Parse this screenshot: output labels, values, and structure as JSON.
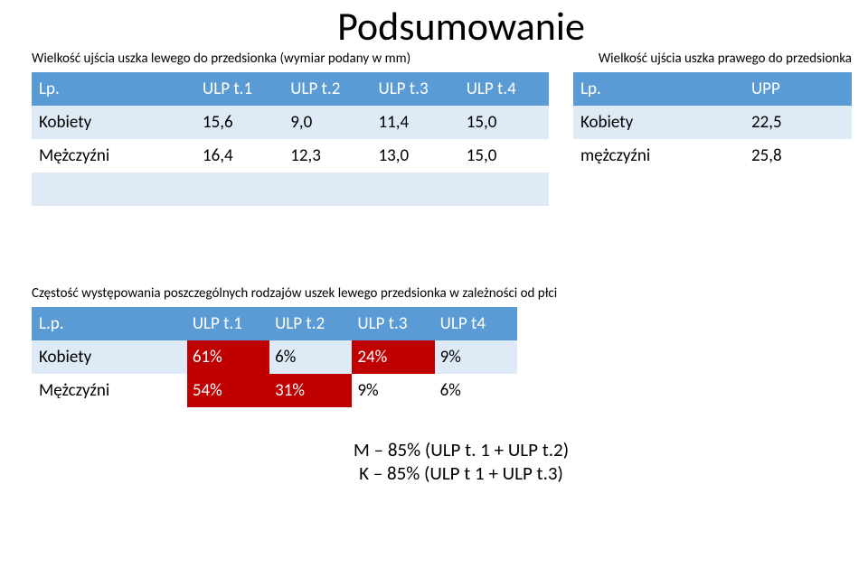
{
  "title": "Podsumowanie",
  "caption_left": "Wielkość ujścia uszka lewego do przedsionka (wymiar podany w mm)",
  "caption_right": "Wielkość ujścia  uszka prawego do przedsionka",
  "caption_bottom": "Częstość występowania poszczególnych rodzajów uszek lewego przedsionka w zależności od płci",
  "t1": {
    "headers": [
      "Lp.",
      "ULP t.1",
      "ULP t.2",
      "ULP t.3",
      "ULP t.4"
    ],
    "rows": [
      {
        "label": "Kobiety",
        "vals": [
          "15,6",
          "9,0",
          "11,4",
          "15,0"
        ]
      },
      {
        "label": "Mężczyźni",
        "vals": [
          "16,4",
          "12,3",
          "13,0",
          "15,0"
        ]
      }
    ]
  },
  "t2": {
    "headers": [
      "Lp.",
      "UPP"
    ],
    "rows": [
      {
        "label": "Kobiety",
        "vals": [
          "22,5"
        ]
      },
      {
        "label": "mężczyźni",
        "vals": [
          "25,8"
        ]
      }
    ]
  },
  "t3": {
    "headers": [
      "L.p.",
      "ULP t.1",
      "ULP t.2",
      "ULP t.3",
      "ULP t4"
    ],
    "rows": [
      {
        "label": "Kobiety",
        "vals": [
          "61%",
          "6%",
          "24%",
          "9%"
        ],
        "red_cols": [
          0,
          2
        ]
      },
      {
        "label": "Mężczyźni",
        "vals": [
          "54%",
          "31%",
          "9%",
          "6%"
        ],
        "red_cols": [
          0,
          1
        ]
      }
    ]
  },
  "footer": {
    "line1": "M – 85% (ULP t. 1 + ULP t.2)",
    "line2": "K – 85% (ULP t 1 + ULP t.3)"
  },
  "colors": {
    "header_bg": "#5b9bd5",
    "header_fg": "#ffffff",
    "row_alt_bg": "#deebf7",
    "red_bg": "#c00000",
    "red_fg": "#ffffff",
    "page_bg": "#ffffff",
    "text": "#000000"
  }
}
